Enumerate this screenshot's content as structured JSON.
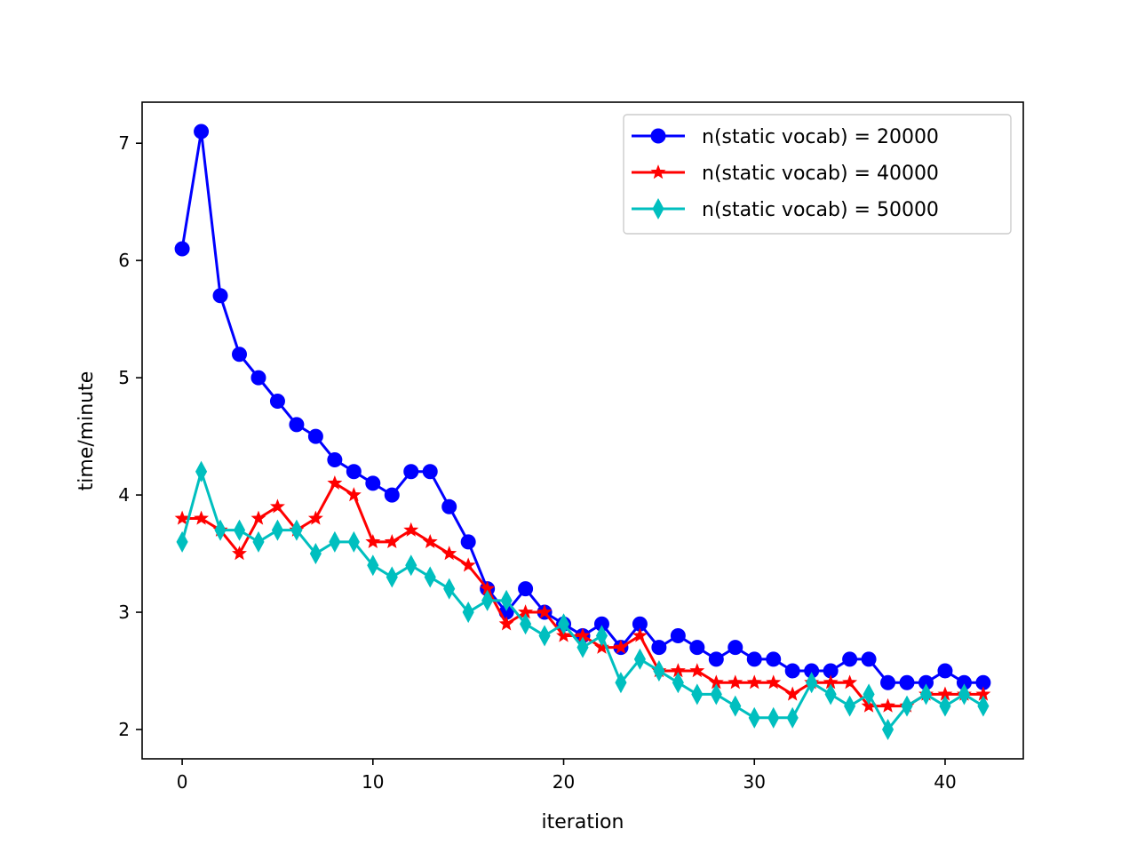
{
  "chart_data": {
    "type": "line",
    "title": "",
    "xlabel": "iteration",
    "ylabel": "time/minute",
    "xlim": [
      -2.1,
      44.1
    ],
    "ylim": [
      1.75,
      7.35
    ],
    "xticks": [
      0,
      10,
      20,
      30,
      40
    ],
    "yticks": [
      2,
      3,
      4,
      5,
      6,
      7
    ],
    "grid": false,
    "legend_position": "upper right",
    "x": [
      0,
      1,
      2,
      3,
      4,
      5,
      6,
      7,
      8,
      9,
      10,
      11,
      12,
      13,
      14,
      15,
      16,
      17,
      18,
      19,
      20,
      21,
      22,
      23,
      24,
      25,
      26,
      27,
      28,
      29,
      30,
      31,
      32,
      33,
      34,
      35,
      36,
      37,
      38,
      39,
      40,
      41,
      42
    ],
    "series": [
      {
        "name": "n(static vocab) = 20000",
        "color": "#0000ff",
        "marker": "circle",
        "values": [
          6.1,
          7.1,
          5.7,
          5.2,
          5.0,
          4.8,
          4.6,
          4.5,
          4.3,
          4.2,
          4.1,
          4.0,
          4.2,
          4.2,
          3.9,
          3.6,
          3.2,
          3.0,
          3.2,
          3.0,
          2.9,
          2.8,
          2.9,
          2.7,
          2.9,
          2.7,
          2.8,
          2.7,
          2.6,
          2.7,
          2.6,
          2.6,
          2.5,
          2.5,
          2.5,
          2.6,
          2.6,
          2.4,
          2.4,
          2.4,
          2.5,
          2.4,
          2.4
        ]
      },
      {
        "name": "n(static vocab) = 40000",
        "color": "#ff0000",
        "marker": "star",
        "values": [
          3.8,
          3.8,
          3.7,
          3.5,
          3.8,
          3.9,
          3.7,
          3.8,
          4.1,
          4.0,
          3.6,
          3.6,
          3.7,
          3.6,
          3.5,
          3.4,
          3.2,
          2.9,
          3.0,
          3.0,
          2.8,
          2.8,
          2.7,
          2.7,
          2.8,
          2.5,
          2.5,
          2.5,
          2.4,
          2.4,
          2.4,
          2.4,
          2.3,
          2.4,
          2.4,
          2.4,
          2.2,
          2.2,
          2.2,
          2.3,
          2.3,
          2.3,
          2.3
        ]
      },
      {
        "name": "n(static vocab) = 50000",
        "color": "#00bfbf",
        "marker": "thin-diamond",
        "values": [
          3.6,
          4.2,
          3.7,
          3.7,
          3.6,
          3.7,
          3.7,
          3.5,
          3.6,
          3.6,
          3.4,
          3.3,
          3.4,
          3.3,
          3.2,
          3.0,
          3.1,
          3.1,
          2.9,
          2.8,
          2.9,
          2.7,
          2.8,
          2.4,
          2.6,
          2.5,
          2.4,
          2.3,
          2.3,
          2.2,
          2.1,
          2.1,
          2.1,
          2.4,
          2.3,
          2.2,
          2.3,
          2.0,
          2.2,
          2.3,
          2.2,
          2.3,
          2.2
        ]
      }
    ]
  }
}
